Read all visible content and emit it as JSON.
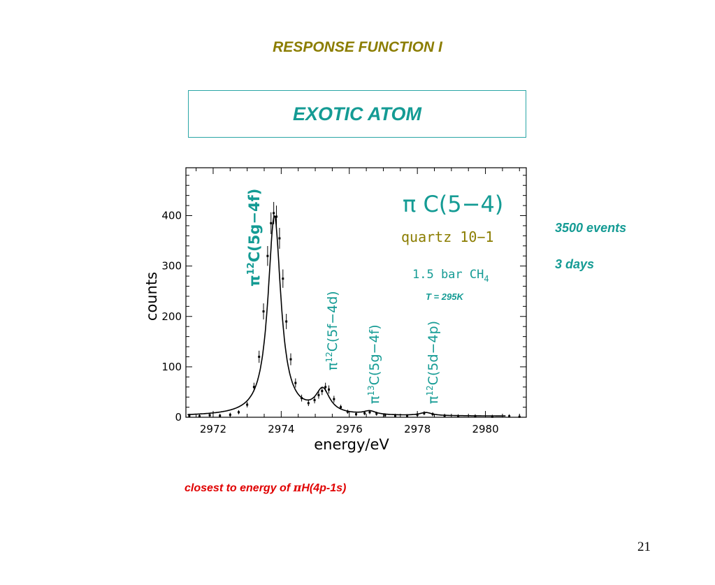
{
  "slide": {
    "title": "RESPONSE FUNCTION I",
    "box_title": "EXOTIC ATOM",
    "notes": [
      "3500 events",
      "3 days"
    ],
    "footnote_prefix": "closest to energy of ",
    "footnote_symbol": "π",
    "footnote_suffix": "H(4p-1s)",
    "page_number": "21"
  },
  "colors": {
    "title": "#8b7d00",
    "teal": "#149b94",
    "footnote": "#e00000"
  },
  "chart_data": {
    "type": "line",
    "xlabel": "energy/eV",
    "ylabel": "counts",
    "xlim": [
      2971.2,
      2981.2
    ],
    "ylim": [
      0,
      495
    ],
    "xticks": [
      2972,
      2974,
      2976,
      2978,
      2980
    ],
    "yticks": [
      0,
      100,
      200,
      300,
      400
    ],
    "annotations": {
      "main": "π C(5−4)",
      "target": "quartz 10−1",
      "gas": "1.5 bar CH",
      "gas_sub": "4",
      "temperature": "T = 295K",
      "peak_main": "π",
      "peak_main_sup": "12",
      "peak_main_rest": "C(5g−4f)",
      "peak_2": "π",
      "peak_2_sup": "12",
      "peak_2_rest": "C(5f−4d)",
      "peak_3": "π",
      "peak_3_sup": "13",
      "peak_3_rest": "C(5g−4f)",
      "peak_4": "π",
      "peak_4_sup": "12",
      "peak_4_rest": "C(5d−4p)"
    },
    "series": [
      {
        "peaks": [
          {
            "center": 2973.8,
            "amplitude": 396,
            "width": 0.23
          },
          {
            "center": 2975.22,
            "amplitude": 47,
            "width": 0.25
          },
          {
            "center": 2976.6,
            "amplitude": 7,
            "width": 0.22
          },
          {
            "center": 2978.25,
            "amplitude": 6,
            "width": 0.22
          }
        ],
        "baseline": 2
      },
      {
        "points": [
          [
            2971.3,
            3
          ],
          [
            2971.6,
            2
          ],
          [
            2971.9,
            4
          ],
          [
            2972.2,
            3
          ],
          [
            2972.5,
            5
          ],
          [
            2972.75,
            10
          ],
          [
            2973.0,
            25
          ],
          [
            2973.2,
            60
          ],
          [
            2973.35,
            120
          ],
          [
            2973.48,
            210
          ],
          [
            2973.6,
            320
          ],
          [
            2973.7,
            385
          ],
          [
            2973.78,
            405
          ],
          [
            2973.86,
            398
          ],
          [
            2973.95,
            355
          ],
          [
            2974.05,
            275
          ],
          [
            2974.15,
            190
          ],
          [
            2974.28,
            115
          ],
          [
            2974.42,
            68
          ],
          [
            2974.6,
            38
          ],
          [
            2974.8,
            28
          ],
          [
            2974.98,
            34
          ],
          [
            2975.1,
            44
          ],
          [
            2975.2,
            52
          ],
          [
            2975.3,
            60
          ],
          [
            2975.4,
            55
          ],
          [
            2975.55,
            36
          ],
          [
            2975.75,
            20
          ],
          [
            2975.95,
            11
          ],
          [
            2976.2,
            6
          ],
          [
            2976.45,
            8
          ],
          [
            2976.6,
            10
          ],
          [
            2976.8,
            7
          ],
          [
            2977.05,
            4
          ],
          [
            2977.35,
            3
          ],
          [
            2977.7,
            2
          ],
          [
            2978.0,
            5
          ],
          [
            2978.2,
            8
          ],
          [
            2978.45,
            6
          ],
          [
            2978.8,
            3
          ],
          [
            2979.2,
            2
          ],
          [
            2979.7,
            2
          ],
          [
            2980.2,
            1
          ],
          [
            2980.7,
            2
          ],
          [
            2981.0,
            1
          ]
        ]
      }
    ]
  }
}
